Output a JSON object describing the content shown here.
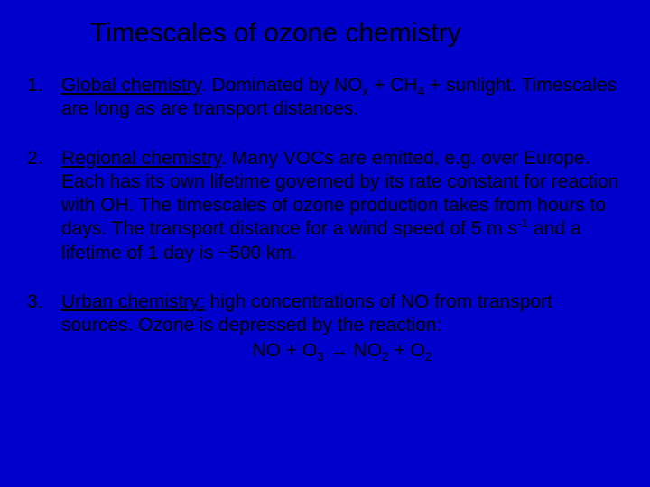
{
  "title": "Timescales of ozone chemistry",
  "items": [
    {
      "num": "1.",
      "heading": "Global chemistry",
      "afterHeading": ". Dominated by NO",
      "sub1": "x",
      "mid1": " + CH",
      "sub2": "4",
      "tail": " + sunlight. Timescales are long as are transport distances."
    },
    {
      "num": "2.",
      "heading": "Regional chemistry",
      "afterHeading": ". Many VOCs are emitted, e.g. over Europe. Each has its own lifetime governed by its rate constant for reaction with OH. The timescales of ozone production takes from hours to days. The transport distance for a wind speed of 5 m s",
      "sup1": "-1",
      "tail": " and a lifetime of 1 day is ~500 km."
    },
    {
      "num": "3.",
      "heading": "Urban chemistry:",
      "afterHeading": " high concentrations of NO from transport sources. Ozone is depressed by the reaction:",
      "eq": {
        "a": "NO  +  O",
        "asub": "3",
        "arrow": "  →  ",
        "b": "NO",
        "bsub": "2",
        "plus": "  +  O",
        "csub": "2"
      }
    }
  ]
}
